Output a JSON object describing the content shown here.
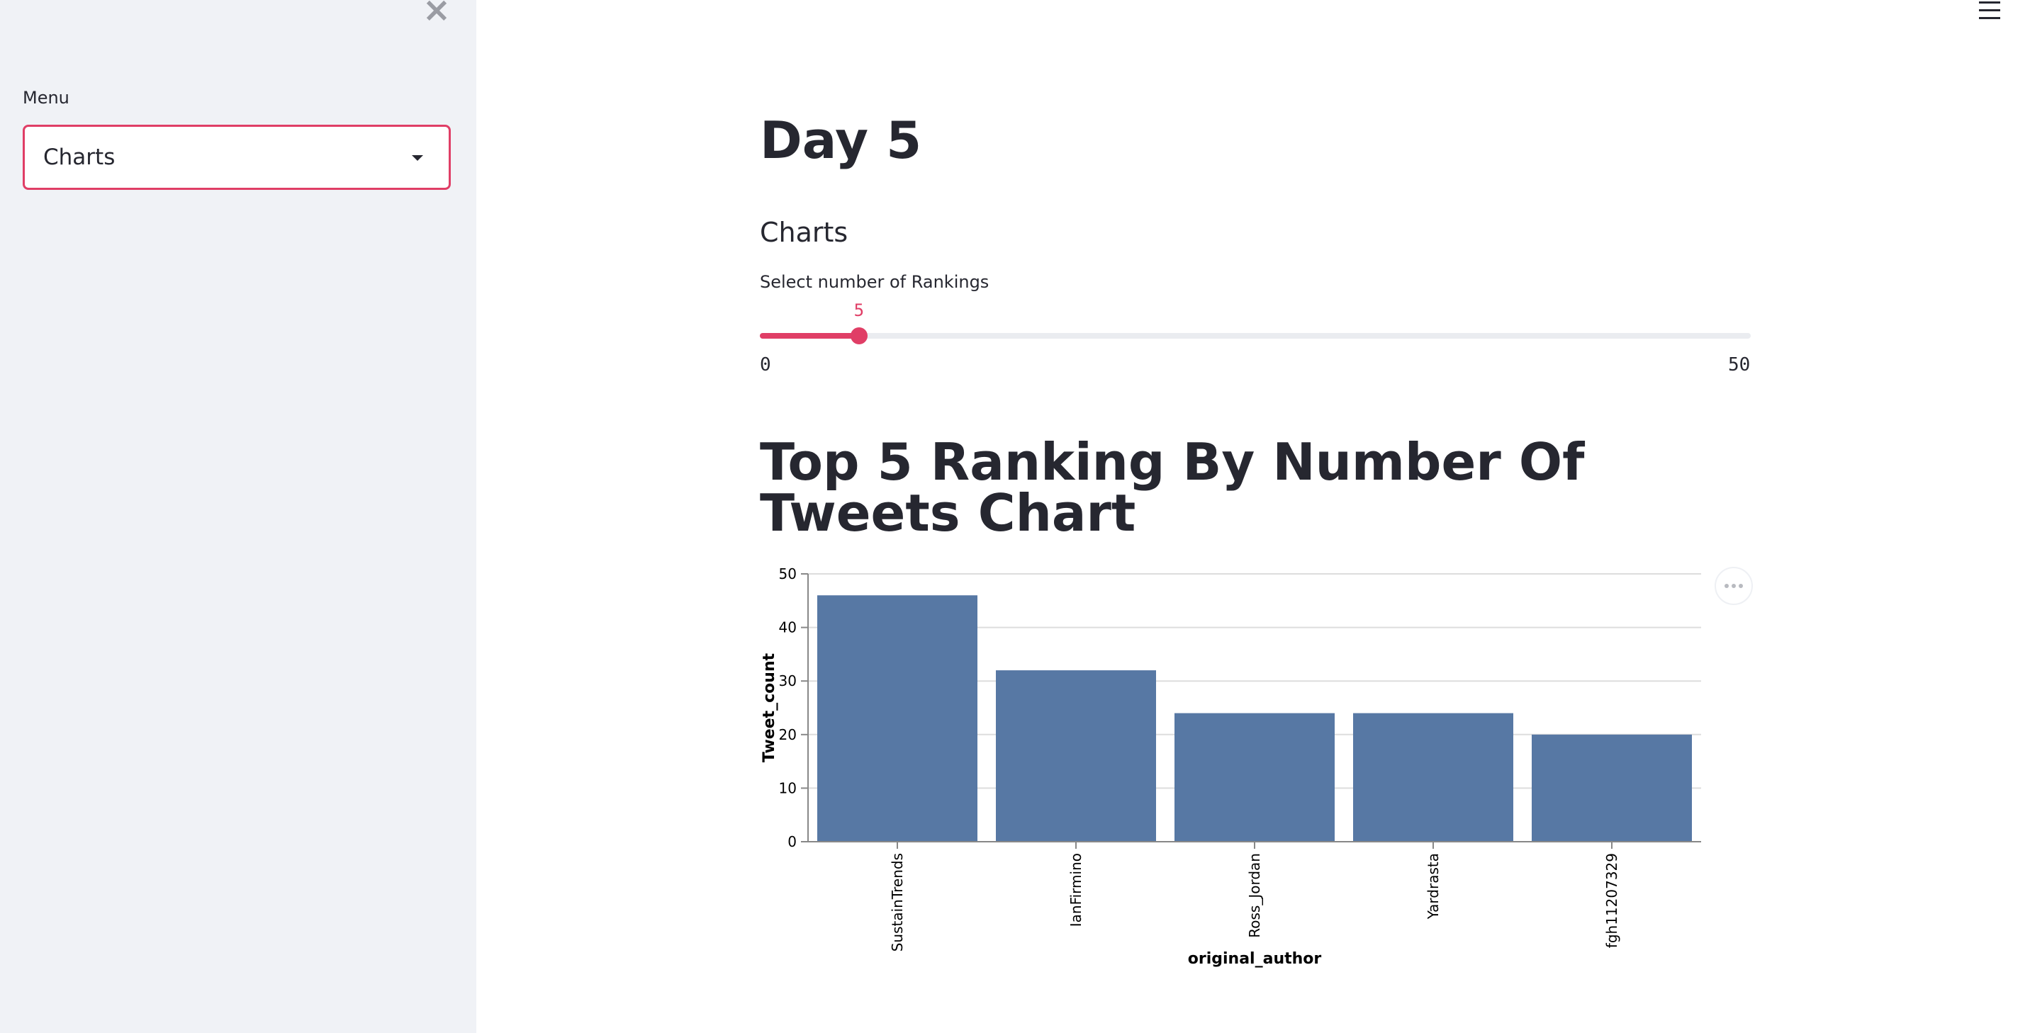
{
  "sidebar": {
    "menu_label": "Menu",
    "menu_value": "Charts"
  },
  "main": {
    "title": "Day 5",
    "section_title": "Charts",
    "slider": {
      "label": "Select number of Rankings",
      "value": 5,
      "min": 0,
      "max": 50,
      "min_label": "0",
      "max_label": "50",
      "value_label": "5",
      "accent": "#e03e66"
    },
    "chart_title": "Top 5 Ranking By Number Of Tweets Chart"
  },
  "icons": {
    "close": "close-icon",
    "hamburger": "hamburger-menu-icon",
    "caret": "chevron-down-icon",
    "more": "more-options-icon"
  },
  "chart_data": {
    "type": "bar",
    "categories": [
      "SustainTrends",
      "IanFirmino",
      "Ross_Jordan",
      "Yardrasta",
      "fgh11207329"
    ],
    "values": [
      46,
      32,
      24,
      24,
      20
    ],
    "xlabel": "original_author",
    "ylabel": "Tweet_count",
    "ylim": [
      0,
      50
    ],
    "yticks": [
      0,
      10,
      20,
      30,
      40,
      50
    ],
    "grid": true,
    "bar_color": "#5778a4"
  }
}
